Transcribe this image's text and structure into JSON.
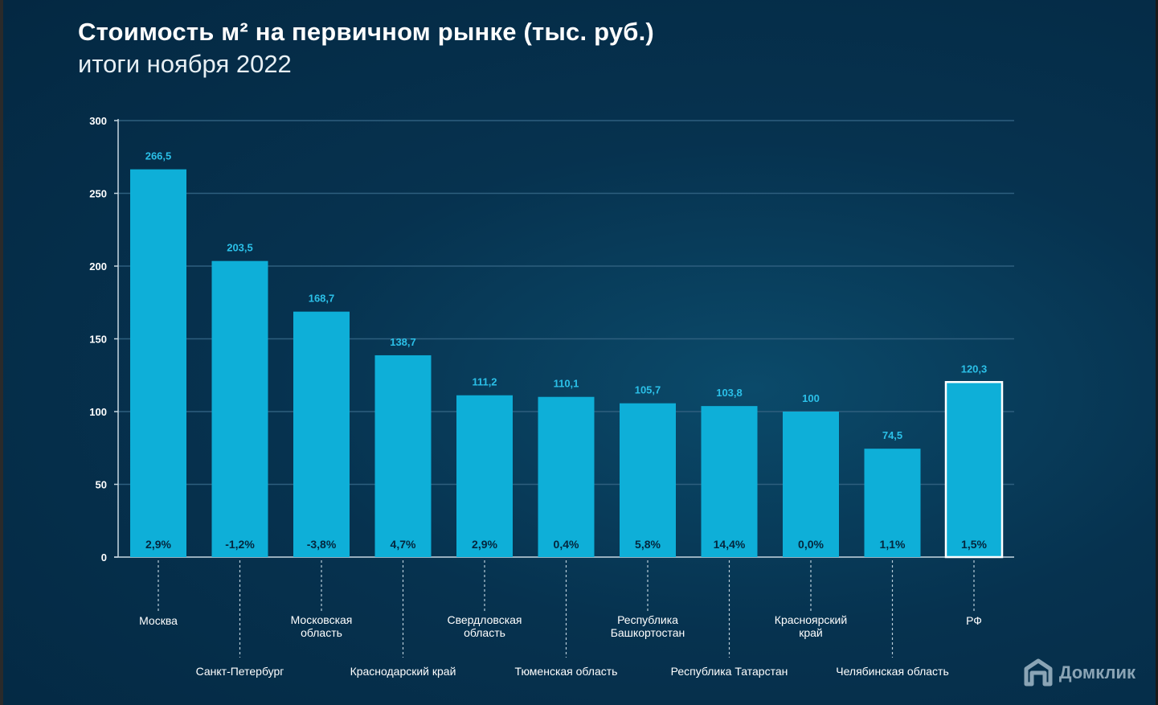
{
  "title": "Стоимость м² на первичном рынке (тыс. руб.)",
  "subtitle": "итоги ноября 2022",
  "brand": "Домклик",
  "colors": {
    "bar": "#0eafd8",
    "value_label": "#2bc0e8",
    "gridline": "#2e5f7e",
    "axis": "#c8d8e2",
    "category_label": "#ffffff",
    "change_label": "#04263d",
    "highlight_border": "#ffffff"
  },
  "chart_data": {
    "type": "bar",
    "title": "Стоимость м² на первичном рынке (тыс. руб.)",
    "xlabel": "",
    "ylabel": "",
    "ylim": [
      0,
      300
    ],
    "yticks": [
      "0",
      "50",
      "100",
      "150",
      "200",
      "250",
      "300"
    ],
    "grid": true,
    "categories": [
      "Москва",
      "Санкт-Петербург",
      "Московская область",
      "Краснодарский край",
      "Свердловская область",
      "Тюменская область",
      "Республика Башкортостан",
      "Республика Татарстан",
      "Красноярский край",
      "Челябинская область",
      "РФ"
    ],
    "category_lines": [
      [
        "Москва"
      ],
      [
        "Санкт-Петербург"
      ],
      [
        "Московская",
        "область"
      ],
      [
        "Краснодарский край"
      ],
      [
        "Свердловская",
        "область"
      ],
      [
        "Тюменская область"
      ],
      [
        "Республика",
        "Башкортостан"
      ],
      [
        "Республика Татарстан"
      ],
      [
        "Красноярский",
        "край"
      ],
      [
        "Челябинская область"
      ],
      [
        "РФ"
      ]
    ],
    "label_row": [
      "upper",
      "lower",
      "upper",
      "lower",
      "upper",
      "lower",
      "upper",
      "lower",
      "upper",
      "lower",
      "upper"
    ],
    "values": [
      266.5,
      203.5,
      168.7,
      138.7,
      111.2,
      110.1,
      105.7,
      103.8,
      100,
      74.5,
      120.3
    ],
    "value_labels": [
      "266,5",
      "203,5",
      "168,7",
      "138,7",
      "111,2",
      "110,1",
      "105,7",
      "103,8",
      "100",
      "74,5",
      "120,3"
    ],
    "changes": [
      "2,9%",
      "-1,2%",
      "-3,8%",
      "4,7%",
      "2,9%",
      "0,4%",
      "5,8%",
      "14,4%",
      "0,0%",
      "1,1%",
      "1,5%"
    ],
    "highlighted": [
      false,
      false,
      false,
      false,
      false,
      false,
      false,
      false,
      false,
      false,
      true
    ]
  }
}
